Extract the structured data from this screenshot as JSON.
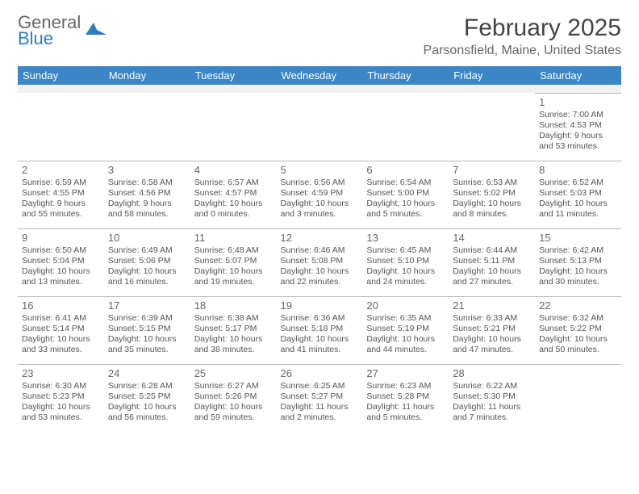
{
  "logo": {
    "general": "General",
    "blue": "Blue"
  },
  "title": "February 2025",
  "location": "Parsonsfield, Maine, United States",
  "weekdays": [
    "Sunday",
    "Monday",
    "Tuesday",
    "Wednesday",
    "Thursday",
    "Friday",
    "Saturday"
  ],
  "header_bg": "#3b86c7",
  "header_fg": "#ffffff",
  "border_color": "#b8b8b8",
  "weeks": [
    [
      null,
      null,
      null,
      null,
      null,
      null,
      {
        "n": "1",
        "sr": "Sunrise: 7:00 AM",
        "ss": "Sunset: 4:53 PM",
        "d1": "Daylight: 9 hours",
        "d2": "and 53 minutes."
      }
    ],
    [
      {
        "n": "2",
        "sr": "Sunrise: 6:59 AM",
        "ss": "Sunset: 4:55 PM",
        "d1": "Daylight: 9 hours",
        "d2": "and 55 minutes."
      },
      {
        "n": "3",
        "sr": "Sunrise: 6:58 AM",
        "ss": "Sunset: 4:56 PM",
        "d1": "Daylight: 9 hours",
        "d2": "and 58 minutes."
      },
      {
        "n": "4",
        "sr": "Sunrise: 6:57 AM",
        "ss": "Sunset: 4:57 PM",
        "d1": "Daylight: 10 hours",
        "d2": "and 0 minutes."
      },
      {
        "n": "5",
        "sr": "Sunrise: 6:56 AM",
        "ss": "Sunset: 4:59 PM",
        "d1": "Daylight: 10 hours",
        "d2": "and 3 minutes."
      },
      {
        "n": "6",
        "sr": "Sunrise: 6:54 AM",
        "ss": "Sunset: 5:00 PM",
        "d1": "Daylight: 10 hours",
        "d2": "and 5 minutes."
      },
      {
        "n": "7",
        "sr": "Sunrise: 6:53 AM",
        "ss": "Sunset: 5:02 PM",
        "d1": "Daylight: 10 hours",
        "d2": "and 8 minutes."
      },
      {
        "n": "8",
        "sr": "Sunrise: 6:52 AM",
        "ss": "Sunset: 5:03 PM",
        "d1": "Daylight: 10 hours",
        "d2": "and 11 minutes."
      }
    ],
    [
      {
        "n": "9",
        "sr": "Sunrise: 6:50 AM",
        "ss": "Sunset: 5:04 PM",
        "d1": "Daylight: 10 hours",
        "d2": "and 13 minutes."
      },
      {
        "n": "10",
        "sr": "Sunrise: 6:49 AM",
        "ss": "Sunset: 5:06 PM",
        "d1": "Daylight: 10 hours",
        "d2": "and 16 minutes."
      },
      {
        "n": "11",
        "sr": "Sunrise: 6:48 AM",
        "ss": "Sunset: 5:07 PM",
        "d1": "Daylight: 10 hours",
        "d2": "and 19 minutes."
      },
      {
        "n": "12",
        "sr": "Sunrise: 6:46 AM",
        "ss": "Sunset: 5:08 PM",
        "d1": "Daylight: 10 hours",
        "d2": "and 22 minutes."
      },
      {
        "n": "13",
        "sr": "Sunrise: 6:45 AM",
        "ss": "Sunset: 5:10 PM",
        "d1": "Daylight: 10 hours",
        "d2": "and 24 minutes."
      },
      {
        "n": "14",
        "sr": "Sunrise: 6:44 AM",
        "ss": "Sunset: 5:11 PM",
        "d1": "Daylight: 10 hours",
        "d2": "and 27 minutes."
      },
      {
        "n": "15",
        "sr": "Sunrise: 6:42 AM",
        "ss": "Sunset: 5:13 PM",
        "d1": "Daylight: 10 hours",
        "d2": "and 30 minutes."
      }
    ],
    [
      {
        "n": "16",
        "sr": "Sunrise: 6:41 AM",
        "ss": "Sunset: 5:14 PM",
        "d1": "Daylight: 10 hours",
        "d2": "and 33 minutes."
      },
      {
        "n": "17",
        "sr": "Sunrise: 6:39 AM",
        "ss": "Sunset: 5:15 PM",
        "d1": "Daylight: 10 hours",
        "d2": "and 35 minutes."
      },
      {
        "n": "18",
        "sr": "Sunrise: 6:38 AM",
        "ss": "Sunset: 5:17 PM",
        "d1": "Daylight: 10 hours",
        "d2": "and 38 minutes."
      },
      {
        "n": "19",
        "sr": "Sunrise: 6:36 AM",
        "ss": "Sunset: 5:18 PM",
        "d1": "Daylight: 10 hours",
        "d2": "and 41 minutes."
      },
      {
        "n": "20",
        "sr": "Sunrise: 6:35 AM",
        "ss": "Sunset: 5:19 PM",
        "d1": "Daylight: 10 hours",
        "d2": "and 44 minutes."
      },
      {
        "n": "21",
        "sr": "Sunrise: 6:33 AM",
        "ss": "Sunset: 5:21 PM",
        "d1": "Daylight: 10 hours",
        "d2": "and 47 minutes."
      },
      {
        "n": "22",
        "sr": "Sunrise: 6:32 AM",
        "ss": "Sunset: 5:22 PM",
        "d1": "Daylight: 10 hours",
        "d2": "and 50 minutes."
      }
    ],
    [
      {
        "n": "23",
        "sr": "Sunrise: 6:30 AM",
        "ss": "Sunset: 5:23 PM",
        "d1": "Daylight: 10 hours",
        "d2": "and 53 minutes."
      },
      {
        "n": "24",
        "sr": "Sunrise: 6:28 AM",
        "ss": "Sunset: 5:25 PM",
        "d1": "Daylight: 10 hours",
        "d2": "and 56 minutes."
      },
      {
        "n": "25",
        "sr": "Sunrise: 6:27 AM",
        "ss": "Sunset: 5:26 PM",
        "d1": "Daylight: 10 hours",
        "d2": "and 59 minutes."
      },
      {
        "n": "26",
        "sr": "Sunrise: 6:25 AM",
        "ss": "Sunset: 5:27 PM",
        "d1": "Daylight: 11 hours",
        "d2": "and 2 minutes."
      },
      {
        "n": "27",
        "sr": "Sunrise: 6:23 AM",
        "ss": "Sunset: 5:28 PM",
        "d1": "Daylight: 11 hours",
        "d2": "and 5 minutes."
      },
      {
        "n": "28",
        "sr": "Sunrise: 6:22 AM",
        "ss": "Sunset: 5:30 PM",
        "d1": "Daylight: 11 hours",
        "d2": "and 7 minutes."
      },
      null
    ]
  ]
}
